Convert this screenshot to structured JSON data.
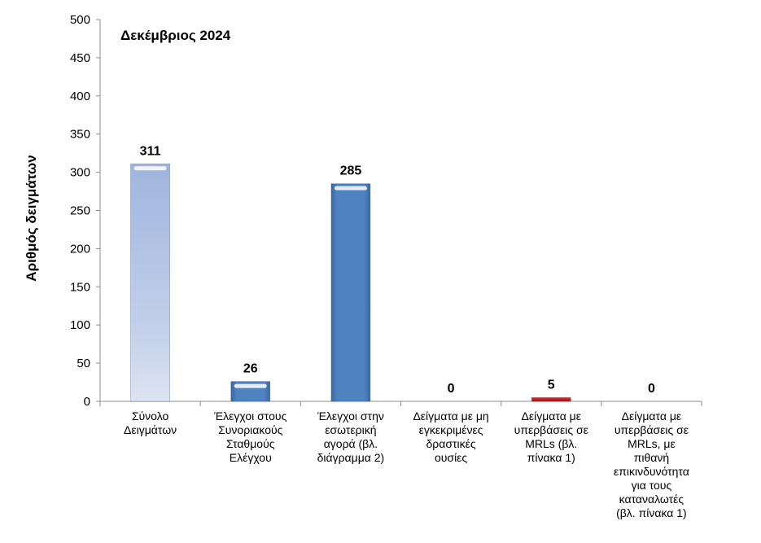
{
  "chart_data": {
    "type": "bar",
    "title": "Δεκέμβριος 2024",
    "ylabel": "Αριθμός δειγμάτων",
    "xlabel": "",
    "ylim": [
      0,
      500
    ],
    "yticks": [
      0,
      50,
      100,
      150,
      200,
      250,
      300,
      350,
      400,
      450,
      500
    ],
    "grid": false,
    "categories": [
      "Σύνολο\nΔειγμάτων",
      "Έλεγχοι στους\nΣυνοριακούς\nΣταθμούς\nΕλέγχου",
      "Έλεγχοι στην\nεσωτερική\nαγορά (βλ.\nδιάγραμμα 2)",
      "Δείγματα με μη\nεγκεκριμένες\nδραστικές\nουσίες",
      "Δείγματα με\nυπερβάσεις σε\nMRLs (βλ.\nπίνακα 1)",
      "Δείγματα με\nυπερβάσεις σε\nMRLs, με\nπιθανή\nεπικινδυνότητα\nγια τους\nκαταναλωτές\n(βλ. πίνακα 1)"
    ],
    "values": [
      311,
      26,
      285,
      0,
      5,
      0
    ],
    "data_labels": [
      "311",
      "26",
      "285",
      "0",
      "5",
      "0"
    ],
    "colors": [
      "#a9bde0",
      "#4a7cba",
      "#4a7cba",
      "#4a7cba",
      "#c0161c",
      "#4a7cba"
    ]
  }
}
